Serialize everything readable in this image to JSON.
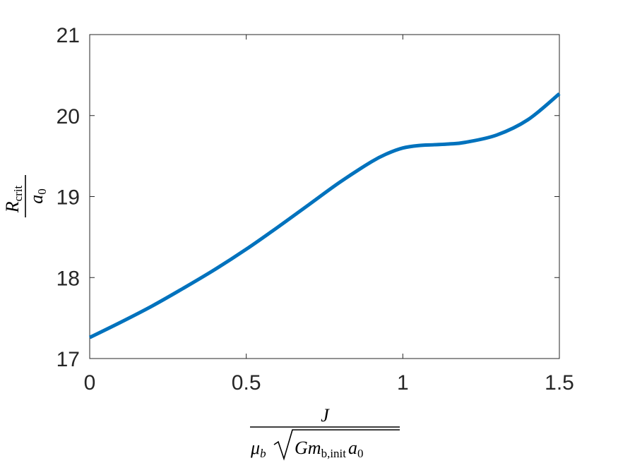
{
  "chart_data": {
    "type": "line",
    "title": "",
    "xlabel_parts": {
      "numerator": "J",
      "denominator_mu": "μ",
      "denominator_mu_sub": "b",
      "denominator_G": "Gm",
      "denominator_m_sub": "b,init",
      "denominator_a": "a",
      "denominator_a_sub": "0"
    },
    "ylabel_parts": {
      "numerator": "R",
      "numerator_sub": "crit",
      "denominator": "a",
      "denominator_sub": "0"
    },
    "xlim": [
      0,
      1.5
    ],
    "ylim": [
      17,
      21
    ],
    "x_ticks": [
      0,
      0.5,
      1,
      1.5
    ],
    "x_tick_labels": [
      "0",
      "0.5",
      "1",
      "1.5"
    ],
    "y_ticks": [
      17,
      18,
      19,
      20,
      21
    ],
    "y_tick_labels": [
      "17",
      "18",
      "19",
      "20",
      "21"
    ],
    "grid": false,
    "series": [
      {
        "color": "#0072BD",
        "x": [
          0,
          0.1,
          0.2,
          0.3,
          0.4,
          0.5,
          0.6,
          0.7,
          0.8,
          0.9,
          0.95,
          1.0,
          1.05,
          1.1,
          1.15,
          1.2,
          1.3,
          1.4,
          1.5
        ],
        "y": [
          17.26,
          17.45,
          17.65,
          17.87,
          18.1,
          18.35,
          18.62,
          18.9,
          19.18,
          19.43,
          19.53,
          19.6,
          19.63,
          19.64,
          19.65,
          19.67,
          19.76,
          19.95,
          20.27
        ]
      }
    ]
  }
}
